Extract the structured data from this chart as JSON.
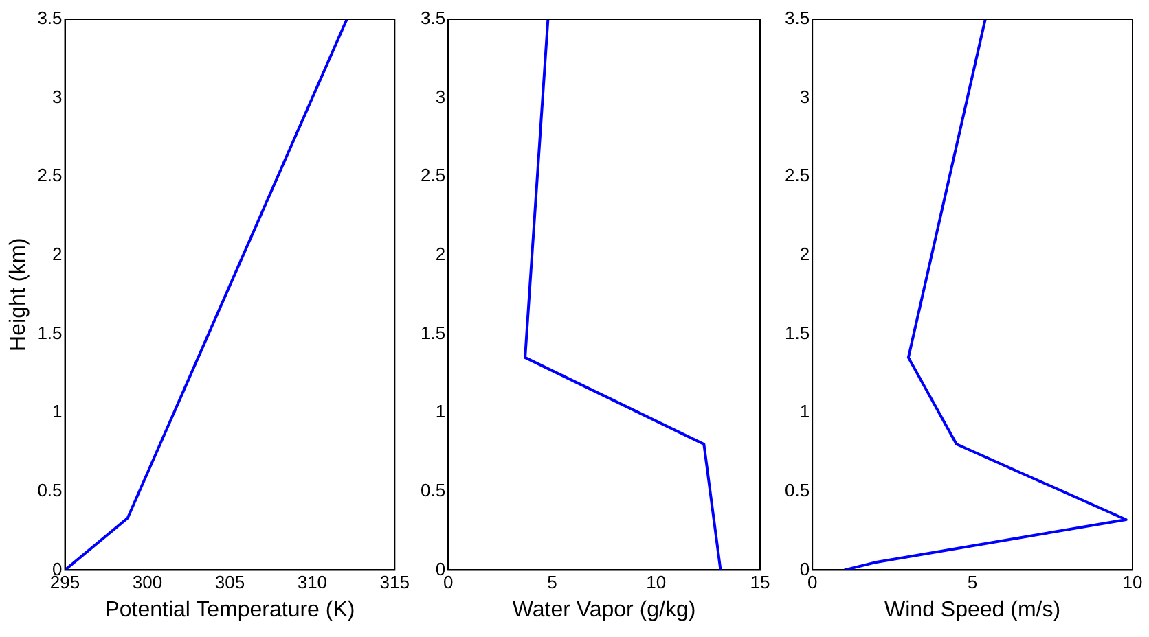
{
  "chart_data": [
    {
      "type": "line",
      "xlabel": "Potential Temperature (K)",
      "ylabel": "Height (km)",
      "x": [
        295,
        298.8,
        312.1
      ],
      "values": [
        0,
        0.33,
        3.5
      ],
      "color": "#0000ff",
      "xlim": [
        295,
        315
      ],
      "xticks": [
        295,
        300,
        305,
        310,
        315
      ],
      "ylim": [
        0,
        3.5
      ],
      "yticks": [
        0,
        0.5,
        1,
        1.5,
        2,
        2.5,
        3,
        3.5
      ],
      "grid": false,
      "legend": false,
      "marker": "none",
      "line_style": "solid"
    },
    {
      "type": "line",
      "xlabel": "Water Vapor (g/kg)",
      "x": [
        13.1,
        12.3,
        3.7,
        4.8
      ],
      "values": [
        0,
        0.8,
        1.35,
        3.5
      ],
      "color": "#0000ff",
      "xlim": [
        0,
        15
      ],
      "xticks": [
        0,
        5,
        10,
        15
      ],
      "ylim": [
        0,
        3.5
      ],
      "yticks": [
        0,
        0.5,
        1,
        1.5,
        2,
        2.5,
        3,
        3.5
      ],
      "grid": false,
      "legend": false,
      "marker": "none",
      "line_style": "solid"
    },
    {
      "type": "line",
      "xlabel": "Wind Speed (m/s)",
      "x": [
        1,
        2,
        9.8,
        4.5,
        3,
        5.4
      ],
      "values": [
        0,
        0.05,
        0.32,
        0.8,
        1.35,
        3.5
      ],
      "color": "#0000ff",
      "xlim": [
        0,
        10
      ],
      "xticks": [
        0,
        5,
        10
      ],
      "ylim": [
        0,
        3.5
      ],
      "yticks": [
        0,
        0.5,
        1,
        1.5,
        2,
        2.5,
        3,
        3.5
      ],
      "grid": false,
      "legend": false,
      "marker": "none",
      "line_style": "solid"
    }
  ]
}
